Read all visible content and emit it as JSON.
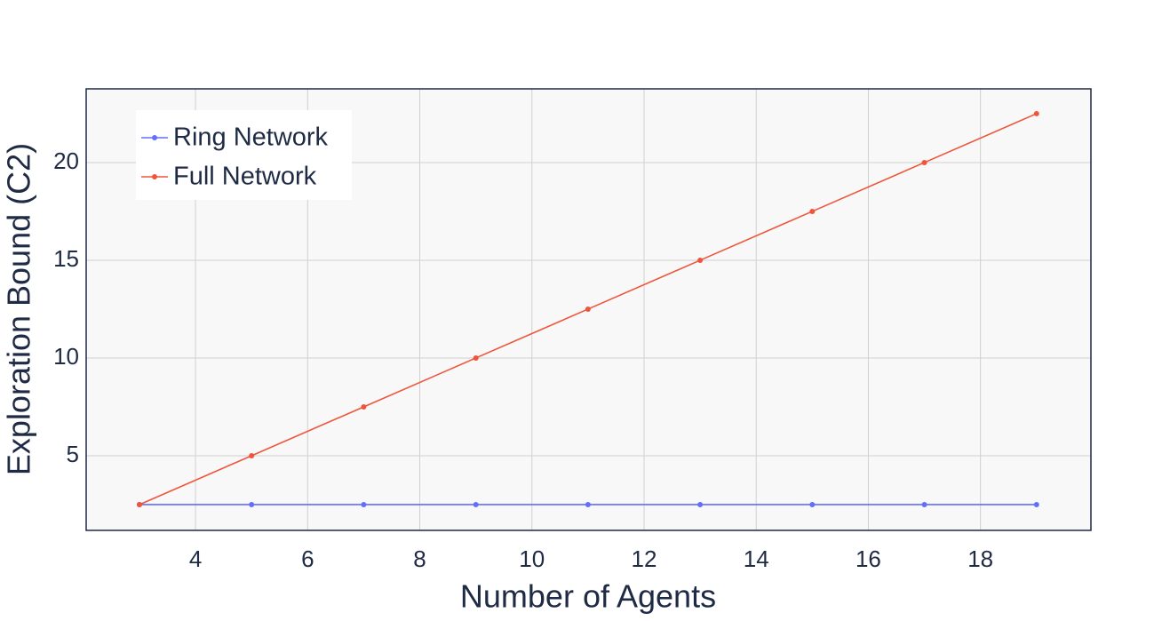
{
  "chart_data": {
    "type": "line",
    "x_label": "Number of Agents",
    "y_label": "Exploration Bound (C2)",
    "x": [
      3,
      5,
      7,
      9,
      11,
      13,
      15,
      17,
      19
    ],
    "series": [
      {
        "name": "Ring Network",
        "color": "#636efa",
        "values": [
          2.5,
          2.5,
          2.5,
          2.5,
          2.5,
          2.5,
          2.5,
          2.5,
          2.5
        ]
      },
      {
        "name": "Full Network",
        "color": "#ef553b",
        "values": [
          2.5,
          5,
          7.5,
          10,
          12.5,
          15,
          17.5,
          20,
          22.5
        ]
      }
    ],
    "xlim": [
      2.05,
      19.97
    ],
    "ylim": [
      1.18,
      23.77
    ],
    "xticks": [
      4,
      6,
      8,
      10,
      12,
      14,
      16,
      18
    ],
    "yticks": [
      5,
      10,
      15,
      20
    ],
    "grid": true,
    "legend": "top-left"
  }
}
